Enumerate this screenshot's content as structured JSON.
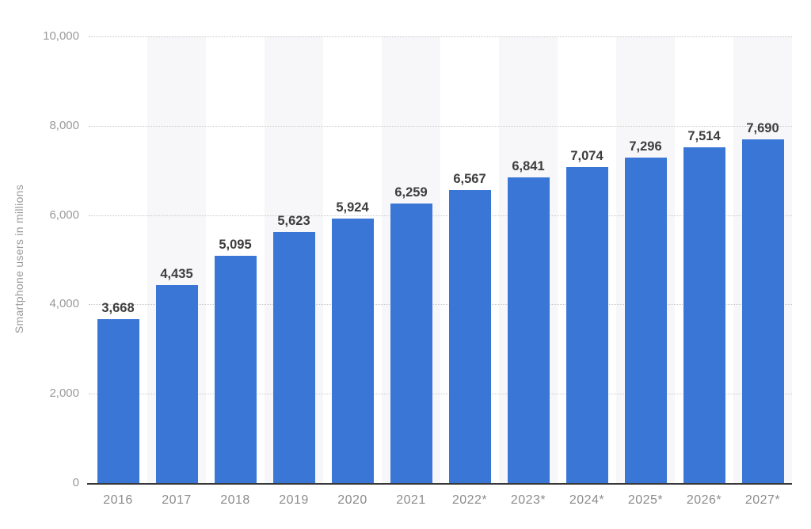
{
  "chart_data": {
    "type": "bar",
    "title": "",
    "xlabel": "",
    "ylabel": "Smartphone users in millions",
    "categories": [
      "2016",
      "2017",
      "2018",
      "2019",
      "2020",
      "2021",
      "2022*",
      "2023*",
      "2024*",
      "2025*",
      "2026*",
      "2027*"
    ],
    "values": [
      3668,
      4435,
      5095,
      5623,
      5924,
      6259,
      6567,
      6841,
      7074,
      7296,
      7514,
      7690
    ],
    "value_labels": [
      "3,668",
      "4,435",
      "5,095",
      "5,623",
      "5,924",
      "6,259",
      "6,567",
      "6,841",
      "7,074",
      "7,296",
      "7,514",
      "7,690"
    ],
    "ylim": [
      0,
      10000
    ],
    "yticks": [
      0,
      2000,
      4000,
      6000,
      8000,
      10000
    ],
    "ytick_labels": [
      "0",
      "2,000",
      "4,000",
      "6,000",
      "8,000",
      "10,000"
    ],
    "legend": "none",
    "grid": "horizontal-dotted",
    "alternating_column_stripes": true,
    "colors": {
      "bar": "#3a76d6",
      "column_stripe": "#f7f7f9",
      "gridline": "#c9c9c9",
      "axis_line": "#383838",
      "tick_label": "#9a9a9a",
      "value_label": "#3d3d3d",
      "background": "#ffffff"
    }
  }
}
